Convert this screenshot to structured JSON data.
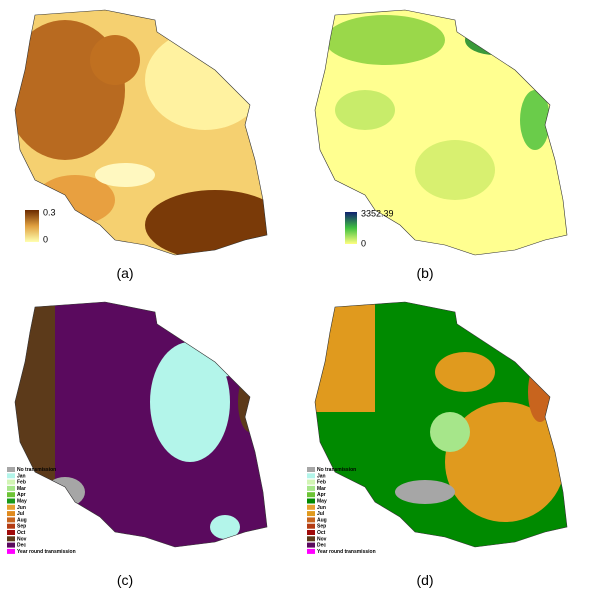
{
  "panels": [
    {
      "label": "(a)",
      "colorbar": {
        "max": 0.3,
        "min": 0
      }
    },
    {
      "label": "(b)",
      "colorbar": {
        "max": 3352.39,
        "min": 0
      }
    },
    {
      "label": "(c)",
      "legend": [
        {
          "name": "No transmission",
          "color": "#a6a6a6"
        },
        {
          "name": "Jan",
          "color": "#b3f5ea"
        },
        {
          "name": "Feb",
          "color": "#d2f5b4"
        },
        {
          "name": "Mar",
          "color": "#a6e68a"
        },
        {
          "name": "Apr",
          "color": "#6cc435"
        },
        {
          "name": "May",
          "color": "#1a9a1a"
        },
        {
          "name": "Jun",
          "color": "#e6a032"
        },
        {
          "name": "Jul",
          "color": "#e08a1e"
        },
        {
          "name": "Aug",
          "color": "#c8641e"
        },
        {
          "name": "Sep",
          "color": "#b43c14"
        },
        {
          "name": "Oct",
          "color": "#a00a0a"
        },
        {
          "name": "Nov",
          "color": "#5c3a1a"
        },
        {
          "name": "Dec",
          "color": "#5a0a5e"
        },
        {
          "name": "Year round transmission",
          "color": "#ff00ff"
        }
      ]
    },
    {
      "label": "(d)",
      "legend": [
        {
          "name": "No transmission",
          "color": "#a6a6a6"
        },
        {
          "name": "Jan",
          "color": "#b3f5ea"
        },
        {
          "name": "Feb",
          "color": "#d2f5b4"
        },
        {
          "name": "Mar",
          "color": "#a6e68a"
        },
        {
          "name": "Apr",
          "color": "#6cc435"
        },
        {
          "name": "May",
          "color": "#008a00"
        },
        {
          "name": "Jun",
          "color": "#e6a032"
        },
        {
          "name": "Jul",
          "color": "#e09a1e"
        },
        {
          "name": "Aug",
          "color": "#c8641e"
        },
        {
          "name": "Sep",
          "color": "#b43c14"
        },
        {
          "name": "Oct",
          "color": "#a00a0a"
        },
        {
          "name": "Nov",
          "color": "#5c3a1a"
        },
        {
          "name": "Dec",
          "color": "#5a0a5e"
        },
        {
          "name": "Year round transmission",
          "color": "#ff00ff"
        }
      ]
    }
  ]
}
